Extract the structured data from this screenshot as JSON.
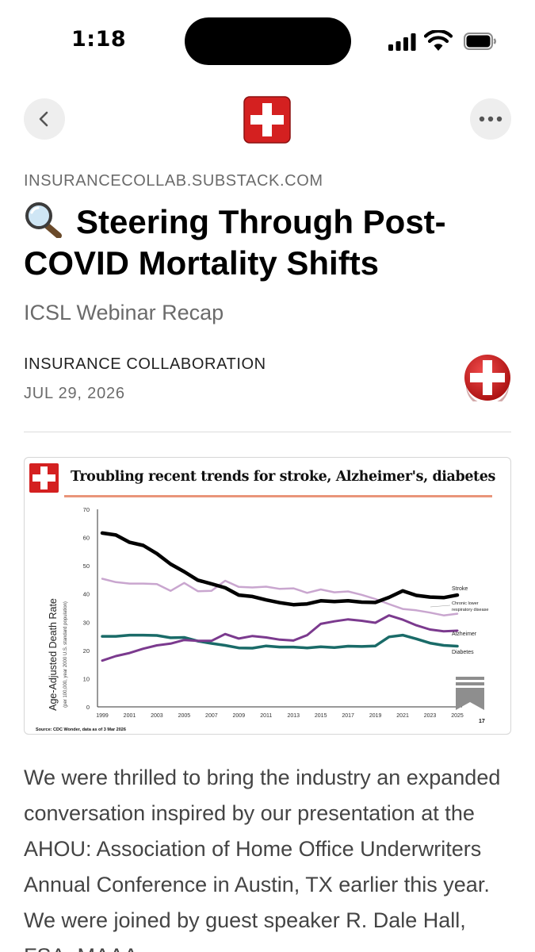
{
  "status_bar": {
    "time": "1:18"
  },
  "article": {
    "domain": "INSURANCECOLLAB.SUBSTACK.COM",
    "title_icon": "magnifying-glass-icon",
    "title": "Steering Through Post-COVID Mortality Shifts",
    "subtitle": "ICSL Webinar Recap",
    "author": "INSURANCE COLLABORATION",
    "date": "JUL 29, 2026",
    "body": "We were thrilled to bring the industry an expanded conversation inspired by our presentation at the AHOU: Association of Home Office Underwriters Annual Conference in Austin, TX earlier this year. We were joined by guest speaker R. Dale Hall, FSA, MAAA"
  },
  "colors": {
    "brand_red": "#d42020",
    "accent_rule": "#e9957a"
  },
  "chart_data": {
    "type": "line",
    "title": "Troubling recent trends for stroke, Alzheimer's, diabetes",
    "ylabel": "Age-Adjusted Death Rate",
    "ylabel_sub": "(per 100,000, year 2000 U.S. standard population)",
    "source": "Source: CDC Wonder, data as of 3 Mar 2026",
    "page_number": "17",
    "ylim": [
      0,
      70
    ],
    "yticks": [
      0,
      10,
      20,
      30,
      40,
      50,
      60,
      70
    ],
    "xticks": [
      1999,
      2001,
      2003,
      2005,
      2007,
      2009,
      2011,
      2013,
      2015,
      2017,
      2019,
      2021,
      2023,
      2025
    ],
    "x": [
      1999,
      2000,
      2001,
      2002,
      2003,
      2004,
      2005,
      2006,
      2007,
      2008,
      2009,
      2010,
      2011,
      2012,
      2013,
      2014,
      2015,
      2016,
      2017,
      2018,
      2019,
      2020,
      2021,
      2022,
      2023,
      2024,
      2025
    ],
    "grid": false,
    "series": [
      {
        "name": "Stroke",
        "color": "#000000",
        "width": 4.5,
        "values": [
          61.6,
          60.9,
          58.3,
          57.2,
          54.3,
          50.6,
          47.9,
          44.9,
          43.6,
          42.2,
          39.6,
          39.1,
          37.9,
          36.9,
          36.2,
          36.5,
          37.6,
          37.3,
          37.6,
          37.1,
          37.0,
          38.8,
          41.1,
          39.5,
          38.9,
          38.7,
          39.6
        ]
      },
      {
        "name": "Chronic lower respiratory disease",
        "color": "#c9a6cf",
        "width": 2.5,
        "values": [
          45.4,
          44.2,
          43.7,
          43.7,
          43.5,
          41.1,
          43.9,
          41.0,
          41.1,
          44.7,
          42.5,
          42.3,
          42.6,
          41.8,
          42.0,
          40.4,
          41.6,
          40.6,
          40.9,
          39.7,
          38.2,
          36.4,
          34.7,
          34.2,
          33.4,
          32.4,
          33.0
        ]
      },
      {
        "name": "Alzheimer",
        "color": "#7b3a8e",
        "width": 3,
        "values": [
          16.4,
          18.0,
          19.1,
          20.6,
          21.8,
          22.4,
          23.7,
          23.4,
          23.4,
          25.8,
          24.2,
          25.1,
          24.6,
          23.8,
          23.5,
          25.4,
          29.4,
          30.3,
          31.0,
          30.5,
          29.8,
          32.4,
          30.9,
          28.9,
          27.4,
          26.8,
          27.0
        ]
      },
      {
        "name": "Diabetes",
        "color": "#1a6b68",
        "width": 3.5,
        "values": [
          25.0,
          25.0,
          25.4,
          25.4,
          25.3,
          24.5,
          24.6,
          23.3,
          22.5,
          21.8,
          20.9,
          20.8,
          21.6,
          21.2,
          21.2,
          20.9,
          21.3,
          21.0,
          21.5,
          21.4,
          21.6,
          24.8,
          25.4,
          24.1,
          22.6,
          21.8,
          21.5
        ]
      }
    ]
  }
}
